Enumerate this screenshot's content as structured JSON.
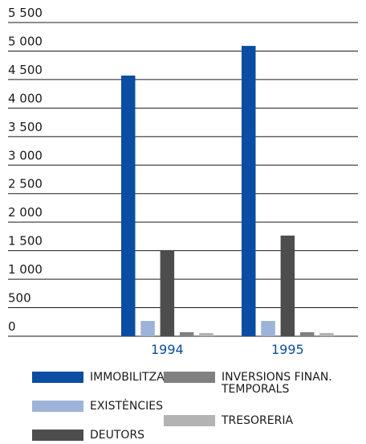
{
  "chart_data": {
    "type": "bar",
    "categories": [
      "1994",
      "1995"
    ],
    "series": [
      {
        "name": "IMMOBILITZAT",
        "color": "#0a4da2",
        "values": [
          4570,
          5090
        ]
      },
      {
        "name": "EXISTÈNCIES",
        "color": "#9db3d8",
        "values": [
          268,
          268
        ]
      },
      {
        "name": "DEUTORS",
        "color": "#4d4d4d",
        "values": [
          1510,
          1765
        ]
      },
      {
        "name": "INVERSIONS FINAN. TEMPORALS",
        "color": "#808080",
        "values": [
          70,
          70
        ]
      },
      {
        "name": "TRESORERIA",
        "color": "#b3b3b3",
        "values": [
          56,
          56
        ]
      }
    ],
    "ylim": [
      0,
      5500
    ],
    "yticks": [
      0,
      500,
      {
        "value": 1000,
        "label": "1 000"
      },
      {
        "value": 1500,
        "label": "1 500"
      },
      {
        "value": 2000,
        "label": "2 000"
      },
      {
        "value": 2500,
        "label": "2 500"
      },
      {
        "value": 3000,
        "label": "3 000"
      },
      {
        "value": 3500,
        "label": "3 500"
      },
      {
        "value": 4000,
        "label": "4 000"
      },
      {
        "value": 4500,
        "label": "4 500"
      },
      {
        "value": 5000,
        "label": "5 000"
      },
      {
        "value": 5500,
        "label": "5 500"
      }
    ],
    "grid": true
  }
}
